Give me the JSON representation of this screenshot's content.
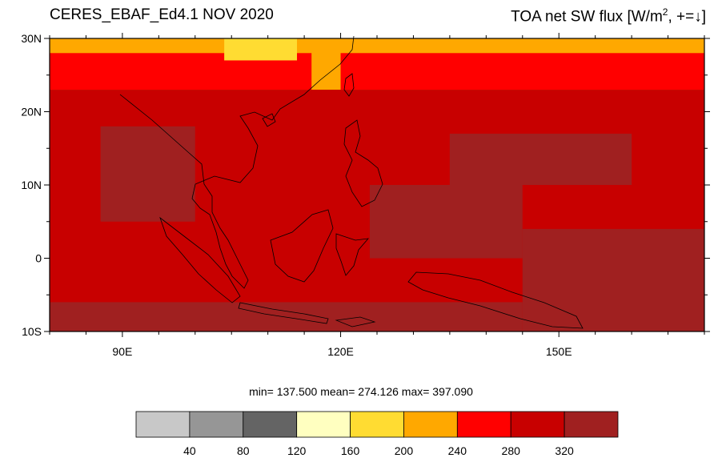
{
  "header": {
    "left_title": "CERES_EBAF_Ed4.1 NOV 2020",
    "right_title_main": "TOA net SW flux [W/m",
    "right_title_sup": "2",
    "right_title_tail": ", +=",
    "right_title_arrow": "↓",
    "right_title_close": "]"
  },
  "stats": {
    "text": "min= 137.500  mean= 274.126  max= 397.090",
    "min": 137.5,
    "mean": 274.126,
    "max": 397.09
  },
  "map": {
    "lon_range": [
      80,
      170
    ],
    "lat_range": [
      -10,
      30
    ],
    "lat_labels": [
      "30N",
      "20N",
      "10N",
      "0",
      "10S"
    ],
    "lat_label_values": [
      30,
      20,
      10,
      0,
      -10
    ],
    "lon_labels": [
      "90E",
      "120E",
      "150E"
    ],
    "lon_label_values": [
      90,
      120,
      150
    ],
    "fields": [
      {
        "name": "yellow-north-band",
        "level": 200,
        "lon": [
          80,
          170
        ],
        "lat": [
          22,
          30
        ]
      },
      {
        "name": "orange-northwest",
        "level": 240,
        "lon": [
          80,
          116
        ],
        "lat": [
          23,
          28
        ]
      },
      {
        "name": "orange-north-sea",
        "level": 240,
        "lon": [
          120,
          170
        ],
        "lat": [
          23,
          28
        ]
      },
      {
        "name": "light-yellow-southchina",
        "level": 160,
        "lon": [
          104,
          114
        ],
        "lat": [
          27,
          30
        ]
      },
      {
        "name": "red-tropics",
        "level": 280,
        "lon": [
          80,
          170
        ],
        "lat": [
          -10,
          23
        ]
      },
      {
        "name": "dark-red-bay-of-bengal",
        "level": 320,
        "lon": [
          87,
          100
        ],
        "lat": [
          5,
          18
        ]
      },
      {
        "name": "dark-red-pacific",
        "level": 320,
        "lon": [
          135,
          160
        ],
        "lat": [
          10,
          17
        ]
      },
      {
        "name": "dark-red-west-pacific",
        "level": 320,
        "lon": [
          124,
          145
        ],
        "lat": [
          0,
          10
        ]
      },
      {
        "name": "darkest-south-pacific",
        "level": 360,
        "lon": [
          145,
          170
        ],
        "lat": [
          -10,
          4
        ]
      },
      {
        "name": "darkest-south-band",
        "level": 360,
        "lon": [
          80,
          145
        ],
        "lat": [
          -10,
          -6
        ]
      }
    ]
  },
  "colorbar": {
    "labels": [
      "40",
      "80",
      "120",
      "160",
      "200",
      "240",
      "280",
      "320"
    ],
    "colors": [
      "#c8c8c8",
      "#969696",
      "#646464",
      "#ffffc0",
      "#ffdc32",
      "#ffa800",
      "#ff0000",
      "#c80000",
      "#a02020"
    ]
  },
  "palette": {
    "yellow": "#ffdc32",
    "orange": "#ffa800",
    "light_yellow": "#ffffc0",
    "red": "#ff0000",
    "dark_red": "#c80000",
    "darkest_red": "#a02020",
    "coast": "#000000"
  }
}
